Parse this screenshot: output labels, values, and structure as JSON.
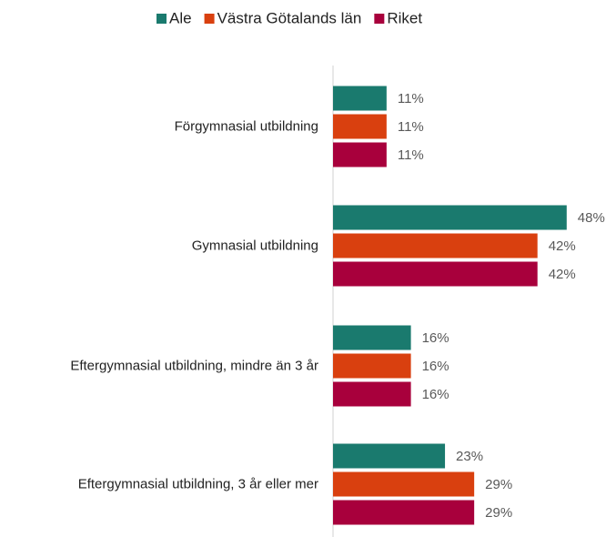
{
  "chart_data": {
    "type": "bar",
    "orientation": "horizontal",
    "categories": [
      "Förgymnasial utbildning",
      "Gymnasial utbildning",
      "Eftergymnasial utbildning, mindre än 3 år",
      "Eftergymnasial utbildning, 3 år eller mer"
    ],
    "series": [
      {
        "name": "Ale",
        "color": "#1a7a6e",
        "values": [
          11,
          48,
          16,
          23
        ],
        "value_labels": [
          "11%",
          "48%",
          "16%",
          "23%"
        ]
      },
      {
        "name": "Västra Götalands län",
        "color": "#d9400f",
        "values": [
          11,
          42,
          16,
          29
        ],
        "value_labels": [
          "11%",
          "42%",
          "16%",
          "29%"
        ]
      },
      {
        "name": "Riket",
        "color": "#a8003c",
        "values": [
          11,
          42,
          16,
          29
        ],
        "value_labels": [
          "11%",
          "42%",
          "16%",
          "29%"
        ]
      }
    ],
    "legend": "top"
  }
}
